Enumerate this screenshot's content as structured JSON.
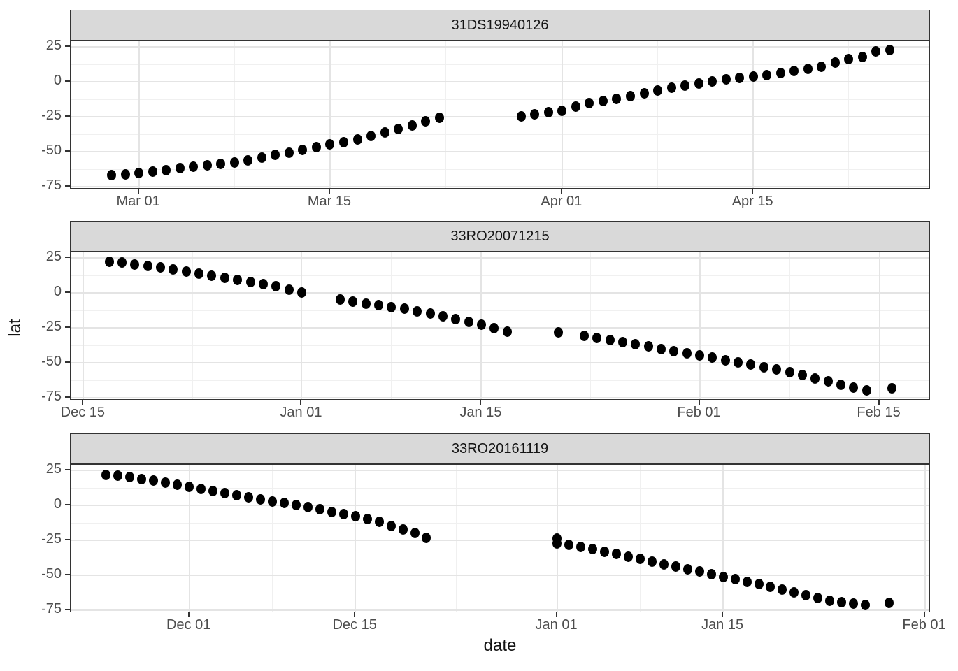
{
  "figure": {
    "x_axis_title": "date",
    "y_axis_title": "lat",
    "colors": {
      "strip_bg": "#d9d9d9",
      "panel_border": "#333333",
      "grid_major": "#e4e4e4",
      "grid_minor": "#f0f0f0",
      "point": "#000000",
      "tick_label": "#4d4d4d",
      "title_text": "#141414"
    }
  },
  "chart_data": [
    {
      "type": "scatter",
      "facet": "31DS19940126",
      "xlabel": "date",
      "ylabel": "lat",
      "x_domain": [
        "1994-02-24",
        "1994-04-28"
      ],
      "y_domain": [
        -77,
        29
      ],
      "y_ticks": [
        25,
        0,
        -25,
        -50,
        -75
      ],
      "x_ticks": [
        {
          "date": "1994-03-01",
          "label": "Mar 01"
        },
        {
          "date": "1994-03-15",
          "label": "Mar 15"
        },
        {
          "date": "1994-04-01",
          "label": "Apr 01"
        },
        {
          "date": "1994-04-15",
          "label": "Apr 15"
        }
      ],
      "points": [
        [
          "1994-02-27",
          -66.8
        ],
        [
          "1994-02-28",
          -66.3
        ],
        [
          "1994-03-01",
          -65.3
        ],
        [
          "1994-03-02",
          -64.2
        ],
        [
          "1994-03-03",
          -63.0
        ],
        [
          "1994-03-04",
          -61.8
        ],
        [
          "1994-03-05",
          -60.6
        ],
        [
          "1994-03-06",
          -59.6
        ],
        [
          "1994-03-07",
          -58.9
        ],
        [
          "1994-03-08",
          -57.6
        ],
        [
          "1994-03-09",
          -56.0
        ],
        [
          "1994-03-10",
          -54.2
        ],
        [
          "1994-03-11",
          -52.4
        ],
        [
          "1994-03-12",
          -50.5
        ],
        [
          "1994-03-13",
          -48.5
        ],
        [
          "1994-03-14",
          -46.5
        ],
        [
          "1994-03-15",
          -44.8
        ],
        [
          "1994-03-16",
          -43.0
        ],
        [
          "1994-03-17",
          -41.0
        ],
        [
          "1994-03-18",
          -38.8
        ],
        [
          "1994-03-19",
          -36.4
        ],
        [
          "1994-03-20",
          -33.8
        ],
        [
          "1994-03-21",
          -31.0
        ],
        [
          "1994-03-22",
          -28.2
        ],
        [
          "1994-03-23",
          -25.8
        ],
        [
          "1994-03-29",
          -24.5
        ],
        [
          "1994-03-30",
          -23.0
        ],
        [
          "1994-03-31",
          -21.8
        ],
        [
          "1994-04-01",
          -20.6
        ],
        [
          "1994-04-02",
          -17.5
        ],
        [
          "1994-04-03",
          -15.2
        ],
        [
          "1994-04-04",
          -13.6
        ],
        [
          "1994-04-05",
          -12.0
        ],
        [
          "1994-04-06",
          -10.0
        ],
        [
          "1994-04-07",
          -8.2
        ],
        [
          "1994-04-08",
          -6.4
        ],
        [
          "1994-04-09",
          -4.4
        ],
        [
          "1994-04-10",
          -2.6
        ],
        [
          "1994-04-11",
          -1.0
        ],
        [
          "1994-04-12",
          0.4
        ],
        [
          "1994-04-13",
          1.6
        ],
        [
          "1994-04-14",
          2.8
        ],
        [
          "1994-04-15",
          3.8
        ],
        [
          "1994-04-16",
          5.0
        ],
        [
          "1994-04-17",
          6.2
        ],
        [
          "1994-04-18",
          7.6
        ],
        [
          "1994-04-19",
          9.2
        ],
        [
          "1994-04-20",
          11.0
        ],
        [
          "1994-04-21",
          14.0
        ],
        [
          "1994-04-22",
          16.2
        ],
        [
          "1994-04-23",
          18.0
        ],
        [
          "1994-04-24",
          21.8
        ],
        [
          "1994-04-25",
          22.6
        ]
      ]
    },
    {
      "type": "scatter",
      "facet": "33RO20071215",
      "xlabel": "date",
      "ylabel": "lat",
      "x_domain": [
        "2007-12-14",
        "2008-02-19"
      ],
      "y_domain": [
        -77,
        29
      ],
      "y_ticks": [
        25,
        0,
        -25,
        -50,
        -75
      ],
      "x_ticks": [
        {
          "date": "2007-12-15",
          "label": "Dec 15"
        },
        {
          "date": "2008-01-01",
          "label": "Jan 01"
        },
        {
          "date": "2008-01-15",
          "label": "Jan 15"
        },
        {
          "date": "2008-02-01",
          "label": "Feb 01"
        },
        {
          "date": "2008-02-15",
          "label": "Feb 15"
        }
      ],
      "points": [
        [
          "2007-12-17",
          22.2
        ],
        [
          "2007-12-18",
          21.6
        ],
        [
          "2007-12-19",
          20.4
        ],
        [
          "2007-12-20",
          19.1
        ],
        [
          "2007-12-21",
          18.3
        ],
        [
          "2007-12-22",
          16.9
        ],
        [
          "2007-12-23",
          15.3
        ],
        [
          "2007-12-24",
          13.8
        ],
        [
          "2007-12-25",
          12.4
        ],
        [
          "2007-12-26",
          11.0
        ],
        [
          "2007-12-27",
          9.5
        ],
        [
          "2007-12-28",
          8.0
        ],
        [
          "2007-12-29",
          6.4
        ],
        [
          "2007-12-30",
          4.8
        ],
        [
          "2007-12-31",
          2.4
        ],
        [
          "2008-01-01",
          0.5
        ],
        [
          "2008-01-04",
          -4.5
        ],
        [
          "2008-01-05",
          -6.2
        ],
        [
          "2008-01-06",
          -7.6
        ],
        [
          "2008-01-07",
          -8.8
        ],
        [
          "2008-01-08",
          -10.0
        ],
        [
          "2008-01-09",
          -11.4
        ],
        [
          "2008-01-10",
          -13.0
        ],
        [
          "2008-01-11",
          -14.8
        ],
        [
          "2008-01-12",
          -16.6
        ],
        [
          "2008-01-13",
          -18.6
        ],
        [
          "2008-01-14",
          -20.6
        ],
        [
          "2008-01-15",
          -22.8
        ],
        [
          "2008-01-16",
          -25.4
        ],
        [
          "2008-01-17",
          -27.6
        ],
        [
          "2008-01-21",
          -28.2
        ],
        [
          "2008-01-23",
          -30.5
        ],
        [
          "2008-01-24",
          -32.0
        ],
        [
          "2008-01-25",
          -33.6
        ],
        [
          "2008-01-26",
          -35.2
        ],
        [
          "2008-01-27",
          -36.8
        ],
        [
          "2008-01-28",
          -38.4
        ],
        [
          "2008-01-29",
          -40.0
        ],
        [
          "2008-01-30",
          -41.6
        ],
        [
          "2008-01-31",
          -43.2
        ],
        [
          "2008-02-01",
          -44.8
        ],
        [
          "2008-02-02",
          -46.4
        ],
        [
          "2008-02-03",
          -48.0
        ],
        [
          "2008-02-04",
          -49.6
        ],
        [
          "2008-02-05",
          -51.3
        ],
        [
          "2008-02-06",
          -53.0
        ],
        [
          "2008-02-07",
          -54.8
        ],
        [
          "2008-02-08",
          -56.8
        ],
        [
          "2008-02-09",
          -58.8
        ],
        [
          "2008-02-10",
          -61.0
        ],
        [
          "2008-02-11",
          -63.4
        ],
        [
          "2008-02-12",
          -65.6
        ],
        [
          "2008-02-13",
          -67.6
        ],
        [
          "2008-02-14",
          -69.6
        ],
        [
          "2008-02-16",
          -68.2
        ]
      ]
    },
    {
      "type": "scatter",
      "facet": "33RO20161119",
      "xlabel": "date",
      "ylabel": "lat",
      "x_domain": [
        "2016-11-21",
        "2017-02-01T12:00:00"
      ],
      "y_domain": [
        -77,
        29
      ],
      "y_ticks": [
        25,
        0,
        -25,
        -50,
        -75
      ],
      "x_ticks": [
        {
          "date": "2016-12-01",
          "label": "Dec 01"
        },
        {
          "date": "2016-12-15",
          "label": "Dec 15"
        },
        {
          "date": "2017-01-01",
          "label": "Jan 01"
        },
        {
          "date": "2017-01-15",
          "label": "Jan 15"
        },
        {
          "date": "2017-02-01",
          "label": "Feb 01"
        }
      ],
      "points": [
        [
          "2016-11-24",
          22.0
        ],
        [
          "2016-11-25",
          21.4
        ],
        [
          "2016-11-26",
          20.3
        ],
        [
          "2016-11-27",
          19.0
        ],
        [
          "2016-11-28",
          17.6
        ],
        [
          "2016-11-29",
          16.1
        ],
        [
          "2016-11-30",
          14.6
        ],
        [
          "2016-12-01",
          13.1
        ],
        [
          "2016-12-02",
          11.6
        ],
        [
          "2016-12-03",
          10.1
        ],
        [
          "2016-12-04",
          8.6
        ],
        [
          "2016-12-05",
          7.2
        ],
        [
          "2016-12-06",
          5.8
        ],
        [
          "2016-12-07",
          4.4
        ],
        [
          "2016-12-08",
          3.0
        ],
        [
          "2016-12-09",
          1.6
        ],
        [
          "2016-12-10",
          0.2
        ],
        [
          "2016-12-11",
          -1.3
        ],
        [
          "2016-12-12",
          -2.9
        ],
        [
          "2016-12-13",
          -4.5
        ],
        [
          "2016-12-14",
          -6.2
        ],
        [
          "2016-12-15",
          -7.9
        ],
        [
          "2016-12-16",
          -9.7
        ],
        [
          "2016-12-17",
          -11.6
        ],
        [
          "2016-12-18",
          -14.5
        ],
        [
          "2016-12-19",
          -17.0
        ],
        [
          "2016-12-20",
          -19.8
        ],
        [
          "2016-12-21",
          -23.0
        ],
        [
          "2017-01-01",
          -23.5
        ],
        [
          "2017-01-01",
          -27.0
        ],
        [
          "2017-01-02",
          -28.2
        ],
        [
          "2017-01-03",
          -29.6
        ],
        [
          "2017-01-04",
          -31.2
        ],
        [
          "2017-01-05",
          -33.0
        ],
        [
          "2017-01-06",
          -34.8
        ],
        [
          "2017-01-07",
          -36.6
        ],
        [
          "2017-01-08",
          -38.4
        ],
        [
          "2017-01-09",
          -40.2
        ],
        [
          "2017-01-10",
          -42.0
        ],
        [
          "2017-01-11",
          -43.8
        ],
        [
          "2017-01-12",
          -45.6
        ],
        [
          "2017-01-13",
          -47.4
        ],
        [
          "2017-01-14",
          -49.2
        ],
        [
          "2017-01-15",
          -51.0
        ],
        [
          "2017-01-16",
          -52.8
        ],
        [
          "2017-01-17",
          -54.6
        ],
        [
          "2017-01-18",
          -56.4
        ],
        [
          "2017-01-19",
          -58.2
        ],
        [
          "2017-01-20",
          -60.2
        ],
        [
          "2017-01-21",
          -62.2
        ],
        [
          "2017-01-22",
          -64.2
        ],
        [
          "2017-01-23",
          -66.2
        ],
        [
          "2017-01-24",
          -68.0
        ],
        [
          "2017-01-25",
          -69.4
        ],
        [
          "2017-01-26",
          -70.4
        ],
        [
          "2017-01-27",
          -71.0
        ],
        [
          "2017-01-29",
          -69.5
        ]
      ]
    }
  ],
  "facet_tops": [
    14,
    316,
    620
  ]
}
